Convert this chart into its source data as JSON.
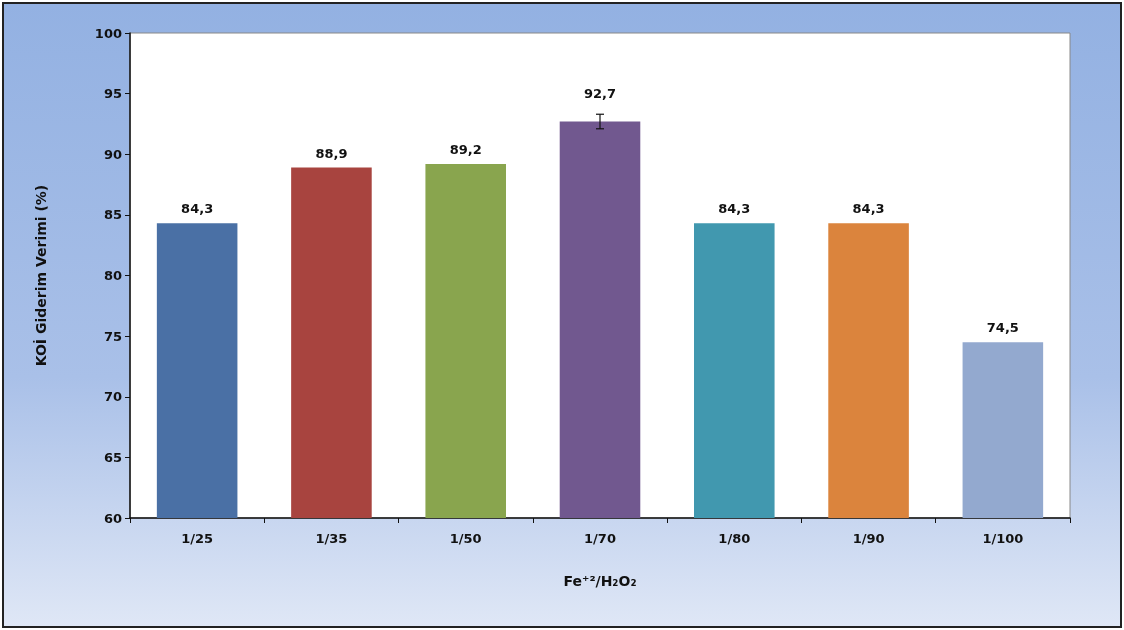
{
  "chart_data": {
    "type": "bar",
    "xlabel": "Fe⁺²/H₂O₂",
    "ylabel": "KOİ Giderim Verimi (%)",
    "categories": [
      "1/25",
      "1/35",
      "1/50",
      "1/70",
      "1/80",
      "1/90",
      "1/100"
    ],
    "values": [
      84.3,
      88.9,
      89.2,
      92.7,
      84.3,
      84.3,
      74.5
    ],
    "colors": [
      "#4a70a5",
      "#a8443f",
      "#89a54e",
      "#71588f",
      "#4198af",
      "#db843d",
      "#93a9cf"
    ],
    "errors": [
      null,
      null,
      null,
      0.6,
      null,
      null,
      null
    ],
    "value_labels": [
      "84,3",
      "88,9",
      "89,2",
      "92,7",
      "84,3",
      "84,3",
      "74,5"
    ],
    "ylim": [
      60,
      100
    ],
    "yticks": [
      60,
      65,
      70,
      75,
      80,
      85,
      90,
      95,
      100
    ],
    "grid": false
  }
}
